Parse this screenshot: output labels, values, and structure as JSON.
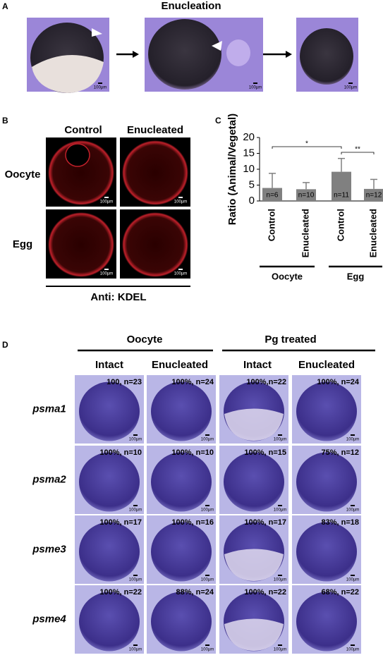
{
  "panel_a": {
    "label": "A",
    "title": "Enucleation",
    "scale_bars": [
      "100µm",
      "100µm",
      "100µm"
    ]
  },
  "panel_b": {
    "label": "B",
    "columns": [
      "Control",
      "Enucleated"
    ],
    "rows": [
      "Oocyte",
      "Egg"
    ],
    "scale_bars": [
      "100µm",
      "100µm",
      "100µm",
      "100µm"
    ],
    "footer": "Anti: KDEL"
  },
  "chart_data": {
    "type": "bar",
    "panel_label": "C",
    "ylabel": "Ratio (Animal/Vegetal)",
    "categories": [
      "Control",
      "Enucleated",
      "Control",
      "Enucleated"
    ],
    "groups": [
      "Oocyte",
      "Egg"
    ],
    "values": [
      4.1,
      3.7,
      9.2,
      3.8
    ],
    "errors": [
      4.6,
      2.1,
      4.2,
      3.0
    ],
    "n_labels": [
      "n=6",
      "n=10",
      "n=11",
      "n=12"
    ],
    "significance": [
      {
        "label": "*",
        "from": 0,
        "to": 2
      },
      {
        "label": "**",
        "from": 2,
        "to": 3
      }
    ],
    "color": "#808080",
    "ylim": [
      0,
      20
    ],
    "yticks": [
      0,
      5,
      10,
      15,
      20
    ]
  },
  "panel_d": {
    "label": "D",
    "groups": [
      "Oocyte",
      "Pg treated"
    ],
    "columns": [
      "Intact",
      "Enucleated",
      "Intact",
      "Enucleated"
    ],
    "rows": [
      {
        "gene": "psma1",
        "counts": [
          "100, n=23",
          "100%, n=24",
          "100%,n=22",
          "100%, n=24"
        ],
        "scales": [
          "100µm",
          "100µm",
          "100µm",
          "100µm"
        ]
      },
      {
        "gene": "psma2",
        "counts": [
          "100%, n=10",
          "100%, n=10",
          "100%, n=15",
          "75%, n=12"
        ],
        "scales": [
          "100µm",
          "100µm",
          "100µm",
          "100µm"
        ]
      },
      {
        "gene": "psme3",
        "counts": [
          "100%, n=17",
          "100%, n=16",
          "100%, n=17",
          "83%, n=18"
        ],
        "scales": [
          "100µm",
          "100µm",
          "100µm",
          "100µm"
        ]
      },
      {
        "gene": "psme4",
        "counts": [
          "100%, n=22",
          "88%, n=24",
          "100%, n=22",
          "68%, n=22"
        ],
        "scales": [
          "100µm",
          "100µm",
          "100µm",
          "100µm"
        ]
      }
    ]
  }
}
